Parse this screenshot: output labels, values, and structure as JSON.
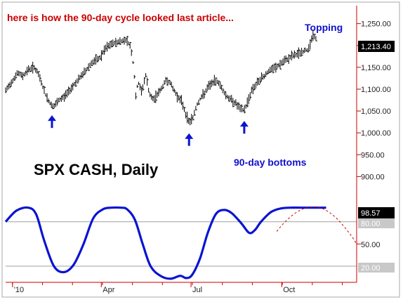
{
  "chart_data": [
    {
      "type": "line",
      "title": "SPX CASH, Daily",
      "annotation_top": "here is how the 90-day cycle looked last article...",
      "annotation_topping": "Topping",
      "annotation_bottoms": "90-day bottoms",
      "last_price_label": "1,213.40",
      "last_price": 1213.4,
      "ylim": [
        862,
        1288
      ],
      "yticks": [
        {
          "value": 1250,
          "label": "1,250.00"
        },
        {
          "value": 1200,
          "label": "1,200.00"
        },
        {
          "value": 1150,
          "label": "1,150.00"
        },
        {
          "value": 1100,
          "label": "1,100.00"
        },
        {
          "value": 1050,
          "label": "1,050.00"
        },
        {
          "value": 1000,
          "label": "1,000.00"
        },
        {
          "value": 950,
          "label": "950.00"
        },
        {
          "value": 900,
          "label": "900.00"
        }
      ],
      "x_ticks": [
        {
          "label": "'10",
          "x": 0
        },
        {
          "label": "Apr",
          "x": 90
        },
        {
          "label": "Jul",
          "x": 181
        },
        {
          "label": "Oct",
          "x": 273
        }
      ],
      "xlim": [
        -7,
        349
      ],
      "price_keypoints": [
        [
          -7,
          1096
        ],
        [
          0,
          1120
        ],
        [
          5,
          1137
        ],
        [
          10,
          1130
        ],
        [
          16,
          1145
        ],
        [
          22,
          1150
        ],
        [
          27,
          1130
        ],
        [
          33,
          1090
        ],
        [
          38,
          1067
        ],
        [
          42,
          1060
        ],
        [
          47,
          1075
        ],
        [
          52,
          1082
        ],
        [
          57,
          1095
        ],
        [
          62,
          1110
        ],
        [
          68,
          1125
        ],
        [
          74,
          1142
        ],
        [
          80,
          1160
        ],
        [
          88,
          1170
        ],
        [
          95,
          1195
        ],
        [
          102,
          1205
        ],
        [
          110,
          1210
        ],
        [
          115,
          1213
        ],
        [
          118,
          1205
        ],
        [
          120,
          1196
        ],
        [
          123,
          1145
        ],
        [
          125,
          1080
        ],
        [
          127,
          1118
        ],
        [
          131,
          1093
        ],
        [
          135,
          1133
        ],
        [
          139,
          1087
        ],
        [
          143,
          1075
        ],
        [
          147,
          1090
        ],
        [
          151,
          1100
        ],
        [
          155,
          1120
        ],
        [
          159,
          1118
        ],
        [
          163,
          1100
        ],
        [
          167,
          1084
        ],
        [
          172,
          1070
        ],
        [
          176,
          1040
        ],
        [
          179,
          1025
        ],
        [
          183,
          1035
        ],
        [
          187,
          1065
        ],
        [
          191,
          1080
        ],
        [
          195,
          1092
        ],
        [
          199,
          1107
        ],
        [
          203,
          1115
        ],
        [
          207,
          1120
        ],
        [
          211,
          1108
        ],
        [
          215,
          1090
        ],
        [
          219,
          1080
        ],
        [
          223,
          1074
        ],
        [
          227,
          1066
        ],
        [
          231,
          1054
        ],
        [
          235,
          1052
        ],
        [
          239,
          1075
        ],
        [
          243,
          1100
        ],
        [
          247,
          1110
        ],
        [
          251,
          1122
        ],
        [
          255,
          1130
        ],
        [
          259,
          1140
        ],
        [
          263,
          1145
        ],
        [
          267,
          1150
        ],
        [
          271,
          1156
        ],
        [
          275,
          1163
        ],
        [
          279,
          1169
        ],
        [
          283,
          1175
        ],
        [
          287,
          1178
        ],
        [
          291,
          1183
        ],
        [
          295,
          1186
        ],
        [
          299,
          1190
        ],
        [
          303,
          1210
        ],
        [
          305,
          1228
        ],
        [
          307,
          1215
        ],
        [
          309,
          1213
        ]
      ],
      "bottom_markers": [
        {
          "x": 40,
          "value": 1053
        },
        {
          "x": 179,
          "value": 1012
        },
        {
          "x": 235,
          "value": 1040
        }
      ],
      "indicator": {
        "ylim": [
          2,
          112
        ],
        "yticks": [
          {
            "value": 50,
            "label": "50.00"
          }
        ],
        "levels": [
          {
            "value": 80,
            "label": "80.00"
          },
          {
            "value": 20,
            "label": "20.00"
          }
        ],
        "last_value": 98.57,
        "last_label": "98.57",
        "keypoints": [
          [
            -7,
            80
          ],
          [
            4,
            95
          ],
          [
            16,
            99
          ],
          [
            24,
            90
          ],
          [
            32,
            55
          ],
          [
            42,
            20
          ],
          [
            52,
            12
          ],
          [
            62,
            22
          ],
          [
            72,
            50
          ],
          [
            82,
            85
          ],
          [
            92,
            97
          ],
          [
            100,
            99
          ],
          [
            110,
            99
          ],
          [
            116,
            97
          ],
          [
            124,
            83
          ],
          [
            132,
            50
          ],
          [
            140,
            20
          ],
          [
            150,
            7
          ],
          [
            160,
            3
          ],
          [
            170,
            7
          ],
          [
            176,
            4
          ],
          [
            182,
            8
          ],
          [
            190,
            30
          ],
          [
            198,
            65
          ],
          [
            206,
            90
          ],
          [
            214,
            96
          ],
          [
            222,
            92
          ],
          [
            232,
            78
          ],
          [
            240,
            65
          ],
          [
            246,
            69
          ],
          [
            252,
            80
          ],
          [
            262,
            93
          ],
          [
            272,
            98
          ],
          [
            282,
            99
          ],
          [
            292,
            99
          ],
          [
            302,
            99
          ],
          [
            312,
            99
          ],
          [
            318,
            99
          ]
        ],
        "projection": [
          [
            268,
            67
          ],
          [
            275,
            78
          ],
          [
            285,
            90
          ],
          [
            294,
            97
          ],
          [
            303,
            100
          ],
          [
            312,
            99
          ],
          [
            322,
            92
          ],
          [
            332,
            80
          ],
          [
            343,
            62
          ],
          [
            349,
            50
          ]
        ]
      },
      "colors": {
        "price": "#000000",
        "indicator": "#0a14d0",
        "projection": "#cc0000",
        "annotation_red": "#cc0000",
        "annotation_blue": "#1010d0",
        "arrow": "#0a14d0",
        "axis": "#cc0000",
        "last_box_bg": "#000000",
        "level_box_bg": "#c8c8c8"
      }
    }
  ]
}
